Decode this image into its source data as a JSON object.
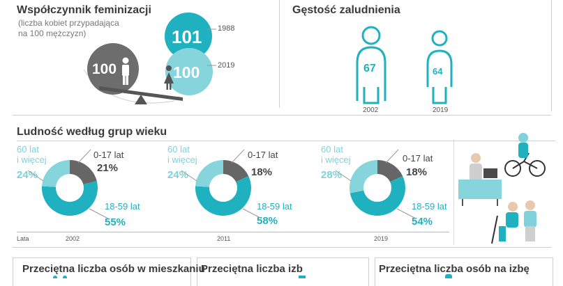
{
  "feminization": {
    "title": "Współczynnik feminizacji",
    "subtitle_line1": "(liczba kobiet przypadająca",
    "subtitle_line2": "na 100 mężczyzn)",
    "male_value": "100",
    "female_1988": "101",
    "female_2019": "100",
    "year_1988": "1988",
    "year_2019": "2019",
    "colors": {
      "teal": "#1fb1c0",
      "light_teal": "#86d4dc",
      "gray": "#6d6d6d"
    }
  },
  "density": {
    "title": "Gęstość zaludnienia",
    "value_2002": "67",
    "value_2019": "64",
    "year_2002": "2002",
    "year_2019": "2019"
  },
  "age_groups": {
    "title": "Ludność według grup wieku",
    "axis_label": "Lata",
    "labels": {
      "old_line1": "60 lat",
      "old_line2": "i więcej",
      "young": "0-17 lat",
      "mid": "18-59 lat"
    },
    "charts": [
      {
        "year": "2002",
        "old": "24%",
        "young": "21%",
        "mid": "55%"
      },
      {
        "year": "2011",
        "old": "24%",
        "young": "18%",
        "mid": "58%"
      },
      {
        "year": "2019",
        "old": "28%",
        "young": "18%",
        "mid": "54%"
      }
    ]
  },
  "chart_data": [
    {
      "type": "pie",
      "title": "2002",
      "categories": [
        "0-17 lat",
        "18-59 lat",
        "60 lat i więcej"
      ],
      "values": [
        21,
        55,
        24
      ]
    },
    {
      "type": "pie",
      "title": "2011",
      "categories": [
        "0-17 lat",
        "18-59 lat",
        "60 lat i więcej"
      ],
      "values": [
        18,
        58,
        24
      ]
    },
    {
      "type": "pie",
      "title": "2019",
      "categories": [
        "0-17 lat",
        "18-59 lat",
        "60 lat i więcej"
      ],
      "values": [
        18,
        54,
        28
      ]
    }
  ],
  "bottom": {
    "persons_per_dwelling": "Przeciętna liczba osób w mieszkaniu",
    "rooms": "Przeciętna liczba izb",
    "persons_per_room": "Przeciętna liczba osób na izbę"
  }
}
